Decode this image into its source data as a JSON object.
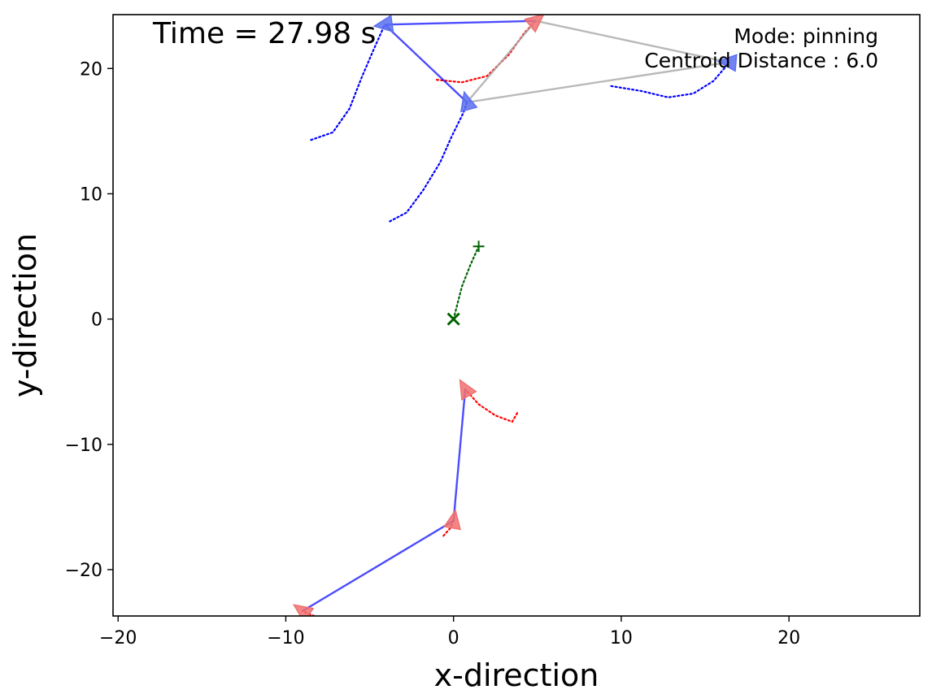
{
  "chart_data": {
    "type": "line",
    "title": "",
    "xlabel": "x-direction",
    "ylabel": "y-direction",
    "xlim": [
      -20.3,
      27.8
    ],
    "ylim": [
      -23.7,
      24.3
    ],
    "xticks": [
      -20,
      -10,
      0,
      10,
      20
    ],
    "yticks": [
      -20,
      -10,
      0,
      10,
      20
    ],
    "xtick_labels": [
      "−20",
      "−10",
      "0",
      "10",
      "20"
    ],
    "ytick_labels": [
      "−20",
      "−10",
      "0",
      "10",
      "20"
    ],
    "grid": false,
    "annotations": {
      "time": "Time = 27.98 s",
      "mode": "Mode: pinning",
      "centroid": "Centroid Distance : 6.0"
    },
    "series": [
      {
        "color": "#0000ff",
        "style": "dotted",
        "role": "blue-trail",
        "points": [
          [
            -8.5,
            14.3
          ],
          [
            -7.2,
            14.9
          ],
          [
            -6.2,
            16.8
          ],
          [
            -5.5,
            19.2
          ],
          [
            -4.8,
            21.4
          ],
          [
            -4.1,
            23.5
          ]
        ]
      },
      {
        "color": "#0000ff",
        "style": "dotted",
        "role": "blue-trail",
        "points": [
          [
            -3.8,
            7.8
          ],
          [
            -2.8,
            8.5
          ],
          [
            -1.8,
            10.3
          ],
          [
            -0.8,
            12.5
          ],
          [
            -0.1,
            14.6
          ],
          [
            0.6,
            16.5
          ],
          [
            0.8,
            17.3
          ]
        ]
      },
      {
        "color": "#0000ff",
        "style": "dotted",
        "role": "blue-trail",
        "points": [
          [
            9.4,
            18.6
          ],
          [
            11.2,
            18.2
          ],
          [
            12.8,
            17.7
          ],
          [
            14.3,
            18.0
          ],
          [
            15.5,
            19.0
          ],
          [
            16.2,
            20.1
          ],
          [
            16.4,
            20.5
          ]
        ]
      },
      {
        "color": "#ff0000",
        "style": "dotted",
        "role": "red-trail",
        "points": [
          [
            -1.0,
            19.1
          ],
          [
            0.5,
            18.9
          ],
          [
            2.0,
            19.4
          ],
          [
            3.3,
            21.1
          ],
          [
            4.2,
            22.8
          ],
          [
            4.9,
            23.8
          ]
        ]
      },
      {
        "color": "#ff0000",
        "style": "dotted",
        "role": "red-trail",
        "points": [
          [
            3.8,
            -7.5
          ],
          [
            3.5,
            -8.2
          ],
          [
            2.5,
            -7.7
          ],
          [
            1.5,
            -6.8
          ],
          [
            0.7,
            -5.6
          ]
        ]
      },
      {
        "color": "#ff0000",
        "style": "dotted",
        "role": "red-trail",
        "points": [
          [
            -0.6,
            -17.3
          ],
          [
            -0.2,
            -16.7
          ],
          [
            0.0,
            -16.1
          ]
        ]
      },
      {
        "color": "#ff0000",
        "style": "dotted",
        "role": "red-trail",
        "points": [
          [
            -8.3,
            -23.7
          ],
          [
            -8.7,
            -23.5
          ],
          [
            -9.0,
            -23.3
          ]
        ]
      },
      {
        "color": "#006400",
        "style": "dotted",
        "role": "centroid-trail",
        "points": [
          [
            0.0,
            0.0
          ],
          [
            0.5,
            2.6
          ],
          [
            1.0,
            4.3
          ],
          [
            1.5,
            5.8
          ]
        ]
      }
    ],
    "edges": [
      {
        "color": "#0000ff",
        "opacity": 0.7,
        "from": [
          -4.1,
          23.5
        ],
        "to": [
          4.9,
          23.8
        ]
      },
      {
        "color": "#0000ff",
        "opacity": 0.7,
        "from": [
          -4.1,
          23.5
        ],
        "to": [
          0.8,
          17.3
        ]
      },
      {
        "color": "#a8a8a8",
        "opacity": 0.8,
        "from": [
          4.9,
          23.8
        ],
        "to": [
          0.8,
          17.3
        ]
      },
      {
        "color": "#a8a8a8",
        "opacity": 0.8,
        "from": [
          4.9,
          23.8
        ],
        "to": [
          16.4,
          20.5
        ]
      },
      {
        "color": "#a8a8a8",
        "opacity": 0.8,
        "from": [
          0.8,
          17.3
        ],
        "to": [
          16.4,
          20.5
        ]
      },
      {
        "color": "#0000ff",
        "opacity": 0.7,
        "from": [
          0.7,
          -5.6
        ],
        "to": [
          0.0,
          -16.1
        ]
      },
      {
        "color": "#0000ff",
        "opacity": 0.7,
        "from": [
          0.0,
          -16.1
        ],
        "to": [
          -9.0,
          -23.3
        ]
      }
    ],
    "agents": [
      {
        "color": "#5a6ff0",
        "pos": [
          -4.1,
          23.5
        ],
        "heading": 188
      },
      {
        "color": "#5a6ff0",
        "pos": [
          0.8,
          17.3
        ],
        "heading": 105
      },
      {
        "color": "#5a6ff0",
        "pos": [
          16.4,
          20.5
        ],
        "heading": 175
      },
      {
        "color": "#f07070",
        "pos": [
          4.9,
          23.8
        ],
        "heading": 40
      },
      {
        "color": "#f07070",
        "pos": [
          0.7,
          -5.6
        ],
        "heading": 120
      },
      {
        "color": "#f07070",
        "pos": [
          0.0,
          -16.1
        ],
        "heading": 80
      },
      {
        "color": "#f07070",
        "pos": [
          -9.0,
          -23.3
        ],
        "heading": 145
      }
    ],
    "markers": [
      {
        "symbol": "x",
        "color": "#006400",
        "pos": [
          0.0,
          0.0
        ],
        "role": "target"
      },
      {
        "symbol": "+",
        "color": "#006400",
        "pos": [
          1.5,
          5.8
        ],
        "role": "centroid"
      }
    ]
  }
}
